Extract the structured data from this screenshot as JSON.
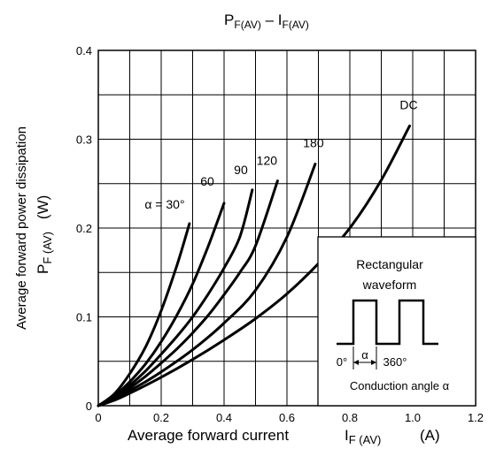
{
  "chart_data": {
    "type": "line",
    "title": {
      "main": "P",
      "main_sub": "F(AV)",
      "sep": " – ",
      "second": "I",
      "second_sub": "F(AV)"
    },
    "xlabel": {
      "text": "Average forward current",
      "symbol": "I",
      "symbol_sub": "F (AV)",
      "unit": "(A)"
    },
    "ylabel": {
      "text": "Average forward power dissipation",
      "symbol": "P",
      "symbol_sub": "F (AV)",
      "unit": "(W)"
    },
    "xlim": [
      0,
      1.2
    ],
    "ylim": [
      0,
      0.4
    ],
    "x_ticks": [
      "0",
      "0.2",
      "0.4",
      "0.6",
      "0.8",
      "1.0",
      "1.2"
    ],
    "y_ticks": [
      "0",
      "0.1",
      "0.2",
      "0.3",
      "0.4"
    ],
    "grid": true,
    "series": [
      {
        "name": "α = 30°",
        "x": [
          0,
          0.05,
          0.1,
          0.15,
          0.2,
          0.25,
          0.29
        ],
        "y": [
          0,
          0.013,
          0.036,
          0.066,
          0.107,
          0.158,
          0.205
        ]
      },
      {
        "name": "60",
        "x": [
          0,
          0.05,
          0.1,
          0.15,
          0.2,
          0.25,
          0.3,
          0.35,
          0.4
        ],
        "y": [
          0,
          0.011,
          0.027,
          0.047,
          0.072,
          0.102,
          0.137,
          0.18,
          0.228
        ]
      },
      {
        "name": "90",
        "x": [
          0,
          0.05,
          0.1,
          0.15,
          0.2,
          0.25,
          0.3,
          0.35,
          0.4,
          0.45,
          0.49
        ],
        "y": [
          0,
          0.01,
          0.023,
          0.039,
          0.058,
          0.078,
          0.1,
          0.126,
          0.155,
          0.19,
          0.243
        ]
      },
      {
        "name": "120",
        "x": [
          0,
          0.05,
          0.1,
          0.15,
          0.2,
          0.25,
          0.3,
          0.35,
          0.4,
          0.45,
          0.5,
          0.57
        ],
        "y": [
          0,
          0.009,
          0.02,
          0.033,
          0.048,
          0.064,
          0.082,
          0.102,
          0.125,
          0.15,
          0.18,
          0.253
        ]
      },
      {
        "name": "180",
        "x": [
          0,
          0.05,
          0.1,
          0.15,
          0.2,
          0.3,
          0.4,
          0.5,
          0.6,
          0.69
        ],
        "y": [
          0,
          0.008,
          0.017,
          0.027,
          0.038,
          0.063,
          0.093,
          0.13,
          0.19,
          0.272
        ]
      },
      {
        "name": "DC",
        "x": [
          0,
          0.05,
          0.1,
          0.2,
          0.3,
          0.4,
          0.5,
          0.6,
          0.7,
          0.8,
          0.9,
          0.99
        ],
        "y": [
          0,
          0.006,
          0.014,
          0.032,
          0.052,
          0.074,
          0.098,
          0.126,
          0.16,
          0.2,
          0.254,
          0.315
        ]
      }
    ],
    "inset": {
      "title_line1": "Rectangular",
      "title_line2": "waveform",
      "label_start": "0°",
      "label_alpha": "α",
      "label_end": "360°",
      "caption": "Conduction angle α"
    }
  }
}
